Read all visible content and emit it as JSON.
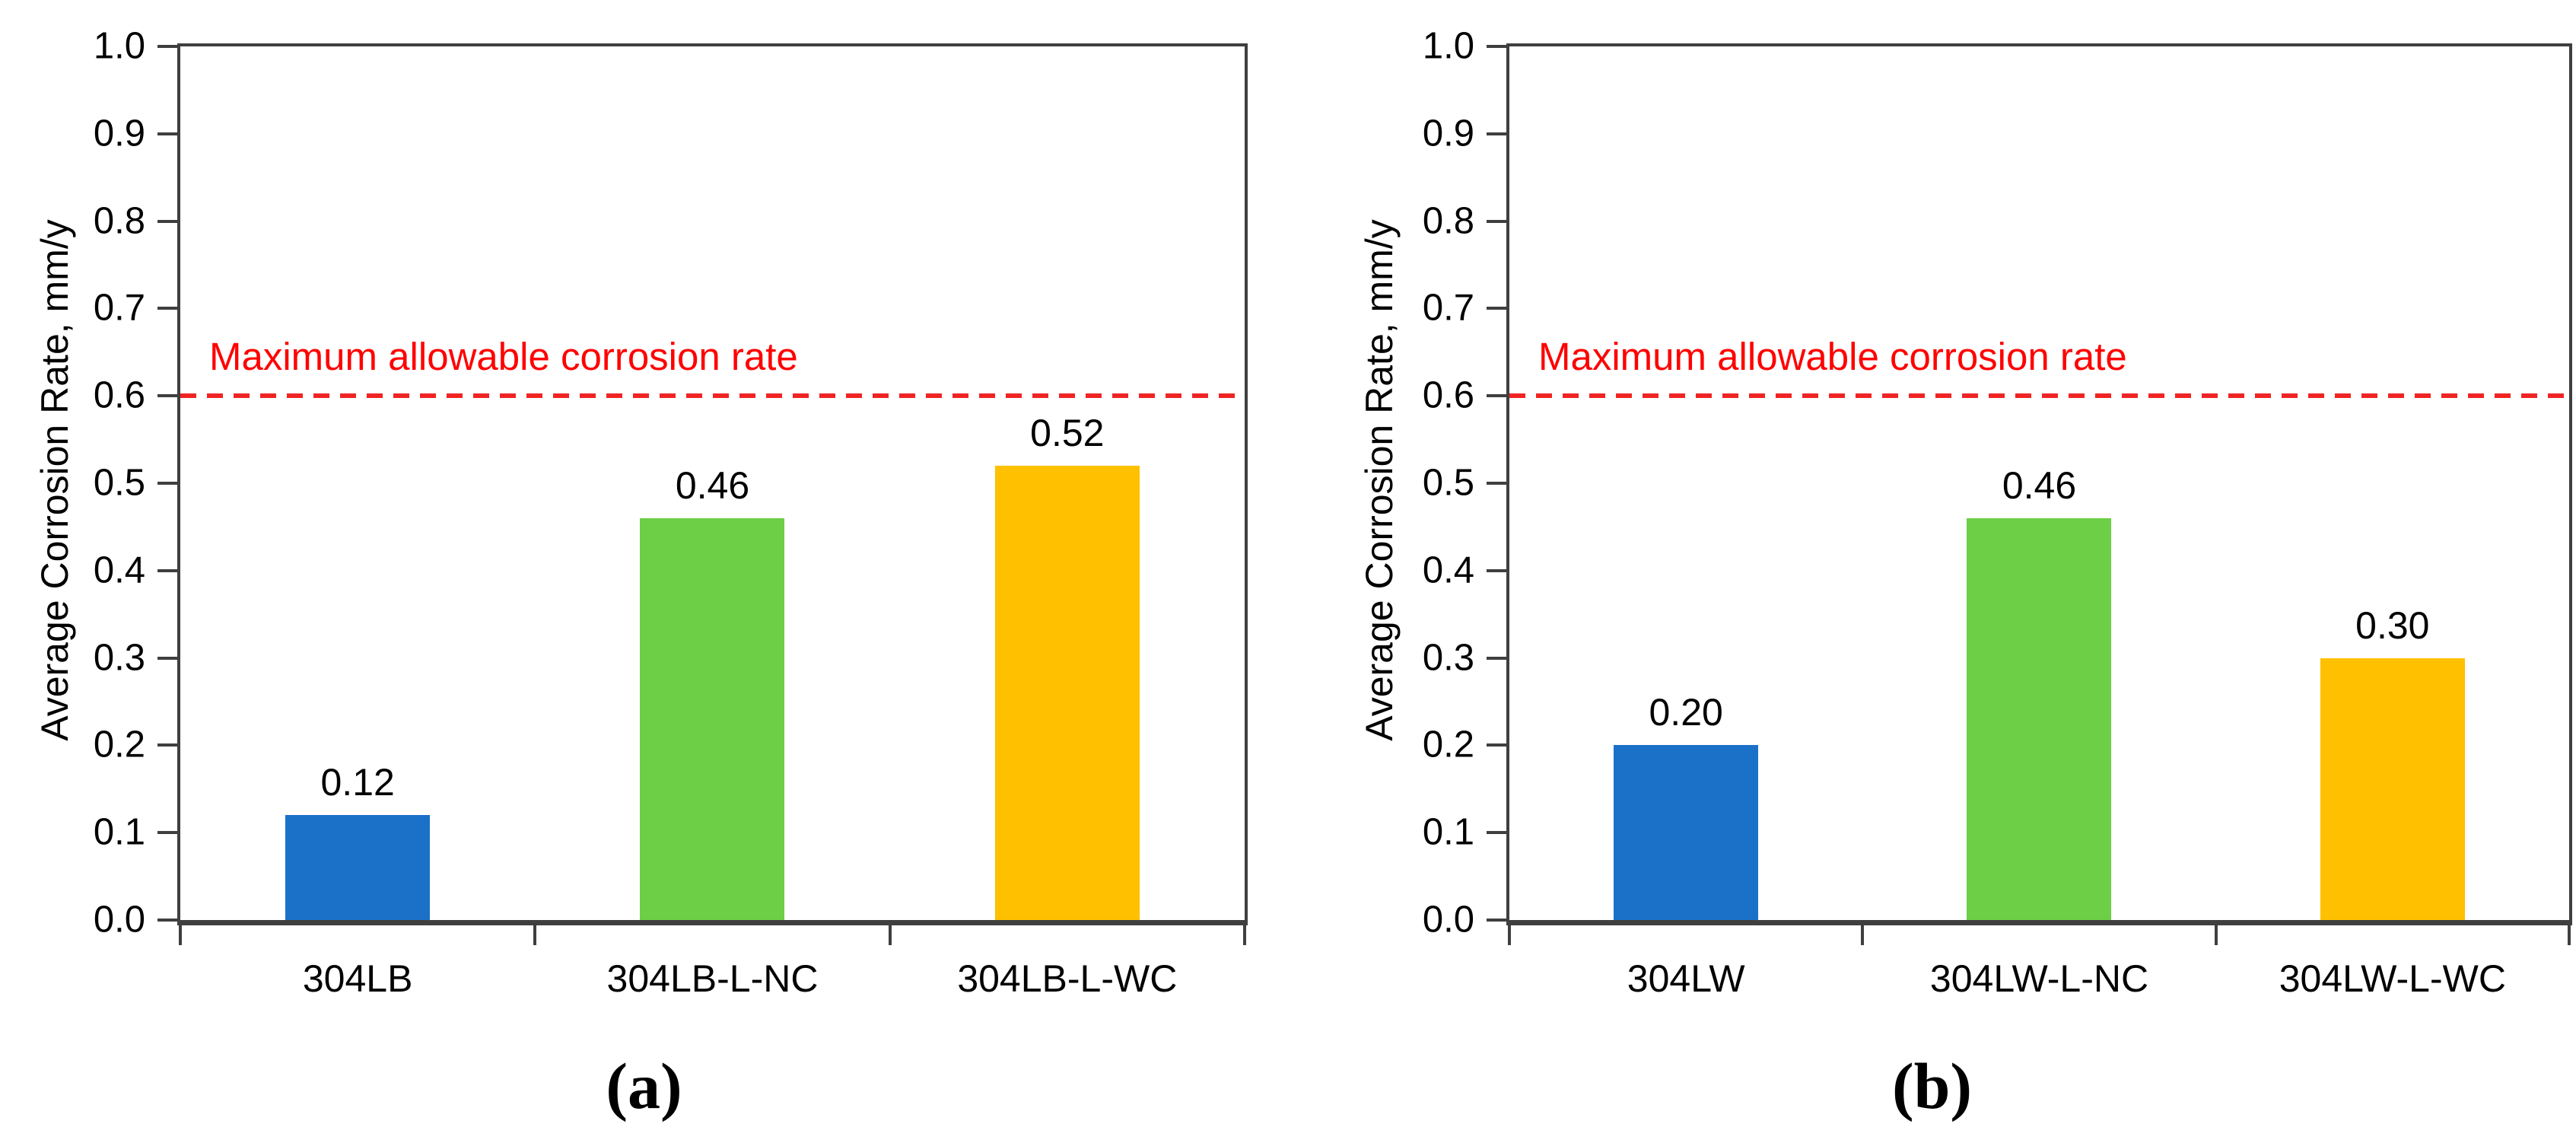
{
  "figure": {
    "background": "#ffffff",
    "captions": {
      "a": "(a)",
      "b": "(b)"
    }
  },
  "style_colors": {
    "axis": "#3F3F3F",
    "text": "#000000",
    "threshold_red": "#FF0000",
    "bar_blue": "#1B70C8",
    "bar_green": "#6CCF45",
    "bar_yellow": "#FFC000"
  },
  "chart_data": [
    {
      "type": "bar",
      "panel_caption": "(a)",
      "title": "",
      "xlabel": "",
      "ylabel": "Average Corrosion Rate, mm/y",
      "categories": [
        "304LB",
        "304LB-L-NC",
        "304LB-L-WC"
      ],
      "values": [
        0.12,
        0.46,
        0.52
      ],
      "value_labels": [
        "0.12",
        "0.46",
        "0.52"
      ],
      "bar_colors": [
        "#1B70C8",
        "#6CCF45",
        "#FFC000"
      ],
      "ylim": [
        0.0,
        1.0
      ],
      "yticks": [
        "0.0",
        "0.1",
        "0.2",
        "0.3",
        "0.4",
        "0.5",
        "0.6",
        "0.7",
        "0.8",
        "0.9",
        "1.0"
      ],
      "grid": false,
      "legend": "none",
      "threshold": {
        "value": 0.6,
        "label": "Maximum allowable corrosion rate",
        "color": "#FF0000",
        "line_style": "dashed"
      }
    },
    {
      "type": "bar",
      "panel_caption": "(b)",
      "title": "",
      "xlabel": "",
      "ylabel": "Average Corrosion Rate, mm/y",
      "categories": [
        "304LW",
        "304LW-L-NC",
        "304LW-L-WC"
      ],
      "values": [
        0.2,
        0.46,
        0.3
      ],
      "value_labels": [
        "0.20",
        "0.46",
        "0.30"
      ],
      "bar_colors": [
        "#1B70C8",
        "#6CCF45",
        "#FFC000"
      ],
      "ylim": [
        0.0,
        1.0
      ],
      "yticks": [
        "0.0",
        "0.1",
        "0.2",
        "0.3",
        "0.4",
        "0.5",
        "0.6",
        "0.7",
        "0.8",
        "0.9",
        "1.0"
      ],
      "grid": false,
      "legend": "none",
      "threshold": {
        "value": 0.6,
        "label": "Maximum allowable corrosion rate",
        "color": "#FF0000",
        "line_style": "dashed"
      }
    }
  ]
}
